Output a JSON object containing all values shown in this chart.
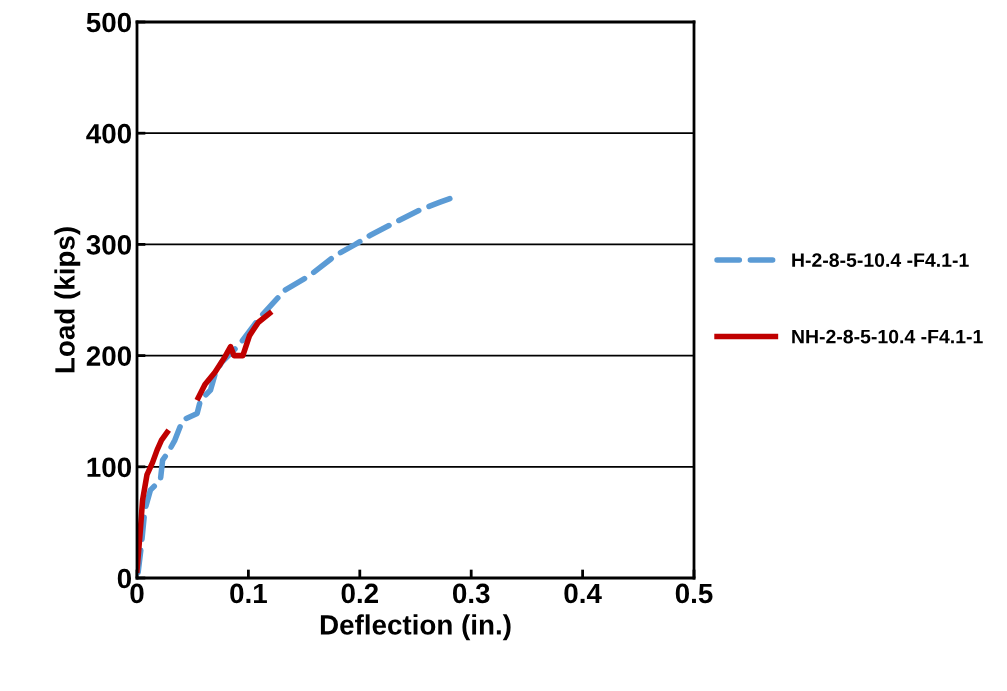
{
  "chart_data": {
    "type": "line",
    "xlabel": "Deflection (in.)",
    "ylabel": "Load (kips)",
    "xlim": [
      0,
      0.5
    ],
    "xticks": [
      {
        "value": 0,
        "label": "0"
      },
      0.1,
      0.2,
      0.3,
      0.4,
      0.5
    ],
    "ylim": [
      0,
      500
    ],
    "yticks": [
      0,
      100,
      200,
      300,
      400,
      500
    ],
    "grid": "y",
    "legend": "right",
    "series": [
      {
        "name": "H-2-8-5-10.4 -F4.1-1",
        "color": "#5b9bd5",
        "line_style": "dashed",
        "x": [
          0.001,
          0.004,
          0.007,
          0.012,
          0.021,
          0.023,
          0.028,
          0.034,
          0.041,
          0.054,
          0.057,
          0.066,
          0.07,
          0.076,
          0.092,
          0.11,
          0.133,
          0.155,
          0.178,
          0.196,
          0.209,
          0.232,
          0.254,
          0.272,
          0.283
        ],
        "values": [
          5,
          30,
          61,
          79,
          88,
          106,
          113,
          124,
          142,
          148,
          160,
          169,
          183,
          194,
          210,
          234,
          259,
          272,
          290,
          300,
          308,
          320,
          331,
          338,
          342
        ]
      },
      {
        "name": "NH-2-8-5-10.4 -F4.1-1",
        "color": "#c00000",
        "line_style": "solid",
        "x": [
          0,
          0.003,
          0.005,
          0.009,
          0.014,
          0.018,
          0.022,
          0.027,
          0.04,
          0.055,
          0.061,
          0.07,
          0.079,
          0.084,
          0.087,
          0.095,
          0.101,
          0.109,
          0.119
        ],
        "values": [
          7,
          43,
          70,
          93,
          104,
          115,
          124,
          131,
          null,
          162,
          174,
          185,
          199,
          208,
          200,
          200,
          218,
          230,
          238
        ]
      }
    ]
  }
}
